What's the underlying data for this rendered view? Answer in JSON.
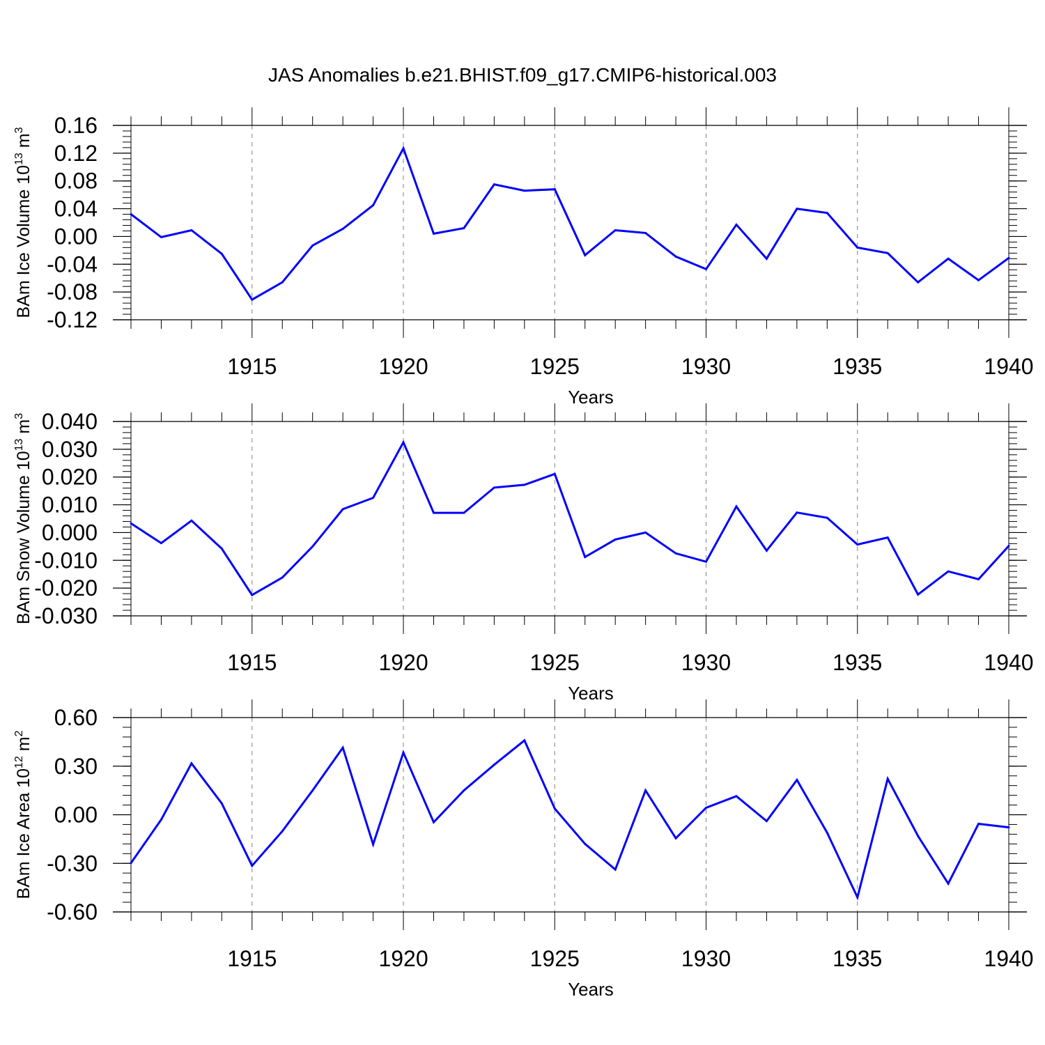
{
  "title": "JAS Anomalies b.e21.BHIST.f09_g17.CMIP6-historical.003",
  "colors": {
    "line": "#0000ff",
    "axis": "#000000",
    "grid": "#808080"
  },
  "chart_data": [
    {
      "type": "line",
      "ylabel": "BAm Ice Volume 10",
      "ylabel_exp": "13",
      "ylabel_unit": "m",
      "ylabel_unit_exp": "3",
      "xlabel": "Years",
      "xlim": [
        1911,
        1940
      ],
      "ylim": [
        -0.12,
        0.16
      ],
      "yticks": [
        -0.12,
        -0.08,
        -0.04,
        0.0,
        0.04,
        0.08,
        0.12,
        0.16
      ],
      "ytick_labels": [
        "-0.12",
        "-0.08",
        "-0.04",
        "0.00",
        "0.04",
        "0.08",
        "0.12",
        "0.16"
      ],
      "yminor_step": 0.008,
      "xticks": [
        1915,
        1920,
        1925,
        1930,
        1935,
        1940
      ],
      "xtick_labels": [
        "1915",
        "1920",
        "1925",
        "1930",
        "1935",
        "1940"
      ],
      "grid": "vertical-dashed",
      "x": [
        1911,
        1912,
        1913,
        1914,
        1915,
        1916,
        1917,
        1918,
        1919,
        1920,
        1921,
        1922,
        1923,
        1924,
        1925,
        1926,
        1927,
        1928,
        1929,
        1930,
        1931,
        1932,
        1933,
        1934,
        1935,
        1936,
        1937,
        1938,
        1939,
        1940
      ],
      "values": [
        0.032,
        -0.001,
        0.009,
        -0.025,
        -0.091,
        -0.066,
        -0.013,
        0.011,
        0.045,
        0.127,
        0.004,
        0.012,
        0.075,
        0.066,
        0.068,
        -0.027,
        0.009,
        0.005,
        -0.029,
        -0.047,
        0.017,
        -0.032,
        0.04,
        0.034,
        -0.016,
        -0.024,
        -0.066,
        -0.032,
        -0.063,
        -0.031
      ]
    },
    {
      "type": "line",
      "ylabel": "BAm Snow Volume 10",
      "ylabel_exp": "13",
      "ylabel_unit": "m",
      "ylabel_unit_exp": "3",
      "xlabel": "Years",
      "xlim": [
        1911,
        1940
      ],
      "ylim": [
        -0.03,
        0.04
      ],
      "yticks": [
        -0.03,
        -0.02,
        -0.01,
        0.0,
        0.01,
        0.02,
        0.03,
        0.04
      ],
      "ytick_labels": [
        "-0.030",
        "-0.020",
        "-0.010",
        "0.000",
        "0.010",
        "0.020",
        "0.030",
        "0.040"
      ],
      "yminor_step": 0.002,
      "xticks": [
        1915,
        1920,
        1925,
        1930,
        1935,
        1940
      ],
      "xtick_labels": [
        "1915",
        "1920",
        "1925",
        "1930",
        "1935",
        "1940"
      ],
      "grid": "vertical-dashed",
      "x": [
        1911,
        1912,
        1913,
        1914,
        1915,
        1916,
        1917,
        1918,
        1919,
        1920,
        1921,
        1922,
        1923,
        1924,
        1925,
        1926,
        1927,
        1928,
        1929,
        1930,
        1931,
        1932,
        1933,
        1934,
        1935,
        1936,
        1937,
        1938,
        1939,
        1940
      ],
      "values": [
        0.0033,
        -0.0038,
        0.0043,
        -0.0058,
        -0.0225,
        -0.0162,
        -0.005,
        0.0084,
        0.0125,
        0.0325,
        0.0071,
        0.0071,
        0.0162,
        0.0172,
        0.0211,
        -0.0088,
        -0.0025,
        0.0,
        -0.0075,
        -0.0105,
        0.0094,
        -0.0065,
        0.0072,
        0.0053,
        -0.0043,
        -0.0018,
        -0.0223,
        -0.014,
        -0.0168,
        -0.0048
      ]
    },
    {
      "type": "line",
      "ylabel": "BAm Ice Area 10",
      "ylabel_exp": "12",
      "ylabel_unit": "m",
      "ylabel_unit_exp": "2",
      "xlabel": "Years",
      "xlim": [
        1911,
        1940
      ],
      "ylim": [
        -0.6,
        0.6
      ],
      "yticks": [
        -0.6,
        -0.3,
        0.0,
        0.3,
        0.6
      ],
      "ytick_labels": [
        "-0.60",
        "-0.30",
        "0.00",
        "0.30",
        "0.60"
      ],
      "yminor_step": 0.06,
      "xticks": [
        1915,
        1920,
        1925,
        1930,
        1935,
        1940
      ],
      "xtick_labels": [
        "1915",
        "1920",
        "1925",
        "1930",
        "1935",
        "1940"
      ],
      "grid": "vertical-dashed",
      "x": [
        1911,
        1912,
        1913,
        1914,
        1915,
        1916,
        1917,
        1918,
        1919,
        1920,
        1921,
        1922,
        1923,
        1924,
        1925,
        1926,
        1927,
        1928,
        1929,
        1930,
        1931,
        1932,
        1933,
        1934,
        1935,
        1936,
        1937,
        1938,
        1939,
        1940
      ],
      "values": [
        -0.298,
        -0.03,
        0.317,
        0.07,
        -0.315,
        -0.102,
        0.15,
        0.414,
        -0.183,
        0.384,
        -0.046,
        0.15,
        0.309,
        0.459,
        0.038,
        -0.18,
        -0.338,
        0.15,
        -0.145,
        0.043,
        0.115,
        -0.039,
        0.215,
        -0.111,
        -0.51,
        0.222,
        -0.131,
        -0.425,
        -0.056,
        -0.078
      ]
    }
  ]
}
